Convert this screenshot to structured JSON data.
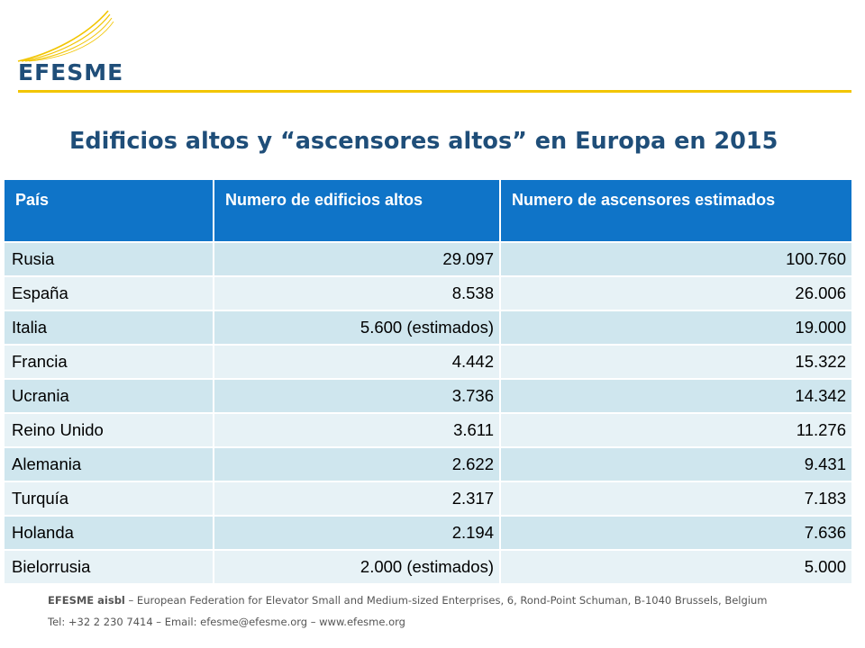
{
  "logo": {
    "text": "EFESME"
  },
  "title": "Edificios altos y “ascensores altos” en Europa en 2015",
  "table": {
    "headers": [
      "País",
      "Numero de edificios altos",
      "Numero de ascensores estimados"
    ],
    "rows": [
      [
        "Rusia",
        "29.097",
        "100.760"
      ],
      [
        "España",
        "8.538",
        "26.006"
      ],
      [
        "Italia",
        "5.600 (estimados)",
        "19.000"
      ],
      [
        "Francia",
        "4.442",
        "15.322"
      ],
      [
        "Ucrania",
        "3.736",
        "14.342"
      ],
      [
        "Reino Unido",
        "3.611",
        "11.276"
      ],
      [
        "Alemania",
        "2.622",
        "9.431"
      ],
      [
        "Turquía",
        "2.317",
        "7.183"
      ],
      [
        "Holanda",
        "2.194",
        "7.636"
      ],
      [
        "Bielorrusia",
        "2.000 (estimados)",
        "5.000"
      ]
    ]
  },
  "footer": {
    "org_name": "EFESME aisbl",
    "org_rest": " – European Federation for Elevator Small and Medium-sized Enterprises, 6, Rond-Point Schuman, B-1040 Brussels, Belgium",
    "contact": "Tel: +32 2 230 7414 – Email: efesme@efesme.org – www.efesme.org"
  },
  "colors": {
    "brand_blue": "#1f4e79",
    "accent_yellow": "#f2c500",
    "header_blue": "#0f74c8",
    "row_odd": "#cfe6ee",
    "row_even": "#e7f2f6"
  }
}
